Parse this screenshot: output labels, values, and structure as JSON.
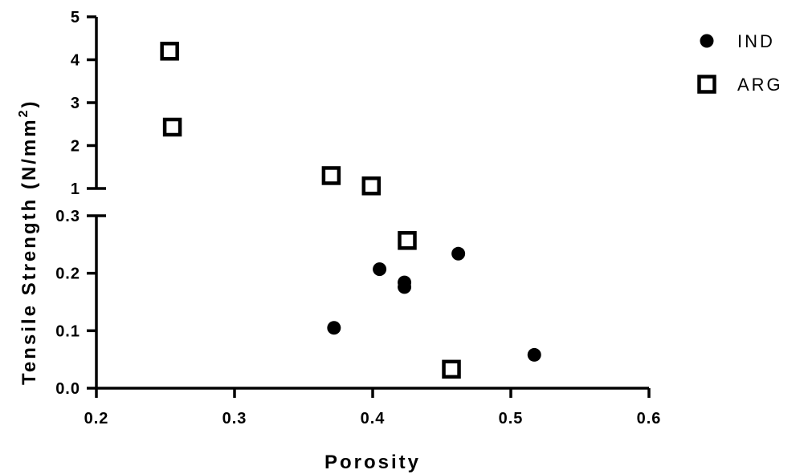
{
  "chart_data": {
    "type": "scatter",
    "xlabel": "Porosity",
    "ylabel": "Tensile Strength (N/mm",
    "ylabel_sup": "2",
    "ylabel_close": ")",
    "x_ticks": [
      0.2,
      0.3,
      0.4,
      0.5,
      0.6
    ],
    "x_tick_labels": [
      "0.2",
      "0.3",
      "0.4",
      "0.5",
      "0.6"
    ],
    "xlim": [
      0.2,
      0.6
    ],
    "y_broken": true,
    "y_lower": {
      "range": [
        0.0,
        0.3
      ],
      "ticks": [
        0.0,
        0.1,
        0.2,
        0.3
      ],
      "tick_labels": [
        "0.0",
        "0.1",
        "0.2",
        "0.3"
      ]
    },
    "y_upper": {
      "range": [
        1,
        5
      ],
      "ticks": [
        1,
        2,
        3,
        4,
        5
      ],
      "tick_labels": [
        "1",
        "2",
        "3",
        "4",
        "5"
      ]
    },
    "legend_position": "top-right",
    "grid": false,
    "series": [
      {
        "name": "IND",
        "marker": "filled-circle",
        "color": "#000000",
        "points": [
          {
            "x": 0.372,
            "y": 0.105
          },
          {
            "x": 0.405,
            "y": 0.207
          },
          {
            "x": 0.423,
            "y": 0.184
          },
          {
            "x": 0.423,
            "y": 0.176
          },
          {
            "x": 0.462,
            "y": 0.234
          },
          {
            "x": 0.517,
            "y": 0.058
          }
        ]
      },
      {
        "name": "ARG",
        "marker": "open-square",
        "color": "#000000",
        "points": [
          {
            "x": 0.253,
            "y": 4.2
          },
          {
            "x": 0.255,
            "y": 2.43
          },
          {
            "x": 0.37,
            "y": 1.3
          },
          {
            "x": 0.399,
            "y": 1.06
          },
          {
            "x": 0.425,
            "y": 0.257
          },
          {
            "x": 0.457,
            "y": 0.033
          }
        ]
      }
    ]
  }
}
